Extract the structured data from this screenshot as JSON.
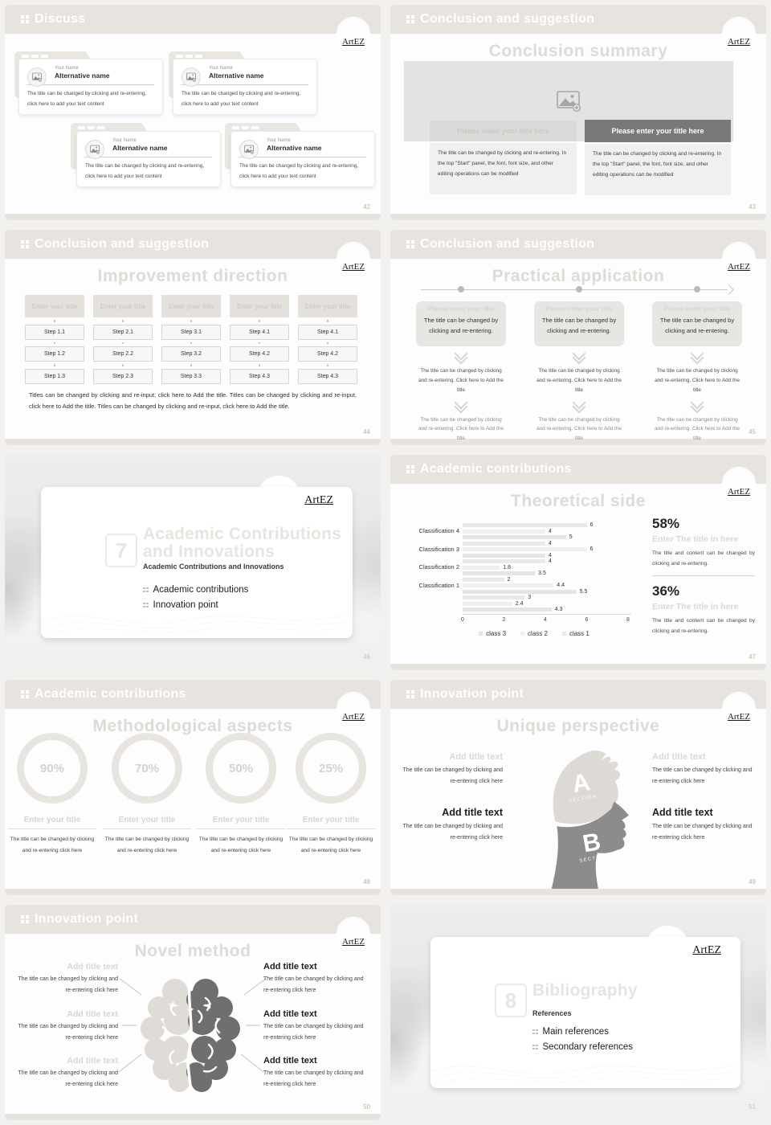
{
  "brand": {
    "logo_text": "ArtEZ"
  },
  "colors": {
    "header_band": "#e7e4e0",
    "body_bg": "#fdfdfd",
    "muted_title": "#dedbd7",
    "dark_panel": "#7b7977",
    "brain_light": "#dfdbd7",
    "brain_dark": "#6f6f6f",
    "head_light": "#ddd9d4",
    "head_dark": "#8c8c8c"
  },
  "strings": {
    "card_name": "Your Name",
    "card_alt": "Alternative name",
    "card_body": "The title can be changed by clicking and re-entering, click here to add your text content",
    "modify_body": "The title can be changed by clicking and re-entering. In the top \"Start\" panel, the font, font size, and other editing operations can be modified",
    "please_title_here": "Please enter your title here",
    "please_title": "Please enter your title",
    "click_change": "The title can be changed by clicking and re-entering.",
    "click_change_add": "The title can be changed by clicking and re-entering. Click here to Add the title",
    "click_change_here": "The title can be changed by clicking and re-entering click here",
    "titles_paragraph": "Titles can be changed by clicking and re-input, click here to Add the title. Titles can be changed by clicking and re-input, click here to Add the title. Titles can be changed by clicking and re-input, click here to Add the title.",
    "enter_your_title": "Enter your title",
    "add_title_text": "Add title text",
    "enter_title_in_here": "Enter The title in here",
    "title_content_change": "The title and content can be changed by clicking and re-entering.",
    "section_label": "SECTION"
  },
  "slides": {
    "discuss": {
      "header": "Discuss",
      "page": "42"
    },
    "conclusion_summary": {
      "header": "Conclusion and suggestion",
      "title": "Conclusion summary",
      "page": "43"
    },
    "improvement": {
      "header": "Conclusion and suggestion",
      "title": "Improvement direction",
      "page": "44",
      "columns": [
        {
          "steps": [
            "Step 1.1",
            "Step 1.2",
            "Step 1.3"
          ]
        },
        {
          "steps": [
            "Step 2.1",
            "Step 2.2",
            "Step 2.3"
          ]
        },
        {
          "steps": [
            "Step 3.1",
            "Step 3.2",
            "Step 3.3"
          ]
        },
        {
          "steps": [
            "Step 4.1",
            "Step 4.2",
            "Step 4.3"
          ]
        },
        {
          "steps": [
            "Step 4.1",
            "Step 4.2",
            "Step 4.3"
          ]
        }
      ]
    },
    "practical": {
      "header": "Conclusion and suggestion",
      "title": "Practical application",
      "page": "45"
    },
    "section7": {
      "number": "7",
      "title_line1": "Academic Contributions",
      "title_line2": "and Innovations",
      "subtitle": "Academic Contributions and Innovations",
      "items": [
        "Academic contributions",
        "Innovation point"
      ],
      "page": "46"
    },
    "theoretical": {
      "header": "Academic contributions",
      "title": "Theoretical side",
      "page": "47",
      "stats": [
        {
          "percent": "58%"
        },
        {
          "percent": "36%"
        }
      ]
    },
    "methodological": {
      "header": "Academic contributions",
      "title": "Methodological aspects",
      "page": "48",
      "percents": [
        "90%",
        "70%",
        "50%",
        "25%"
      ]
    },
    "unique": {
      "header": "Innovation point",
      "title": "Unique perspective",
      "page": "49",
      "sections": [
        {
          "letter": "A"
        },
        {
          "letter": "B"
        }
      ]
    },
    "novel": {
      "header": "Innovation point",
      "title": "Novel method",
      "page": "50"
    },
    "section8": {
      "number": "8",
      "title_line1": "Bibliography",
      "subtitle": "References",
      "items": [
        "Main references",
        "Secondary references"
      ],
      "page": "51"
    }
  },
  "chart_data": {
    "type": "bar",
    "orientation": "horizontal",
    "title": "Theoretical side",
    "categories": [
      "Classification 4",
      "Classification 3",
      "Classification 2",
      "Classification 1",
      ""
    ],
    "groups": [
      [
        6,
        4,
        5
      ],
      [
        4,
        6,
        4
      ],
      [
        4,
        1.8,
        3.5
      ],
      [
        2,
        4.4,
        5.5
      ],
      [
        3,
        2.4,
        4.3
      ]
    ],
    "xlim": [
      0,
      8
    ],
    "xticks": [
      0,
      2,
      4,
      6,
      8
    ],
    "legend": [
      "class 3",
      "class 2",
      "class 1"
    ],
    "series_colors": [
      "#ebe9e7",
      "#f1efed",
      "#e6e4e1"
    ],
    "grid": false,
    "legend_position": "bottom"
  }
}
